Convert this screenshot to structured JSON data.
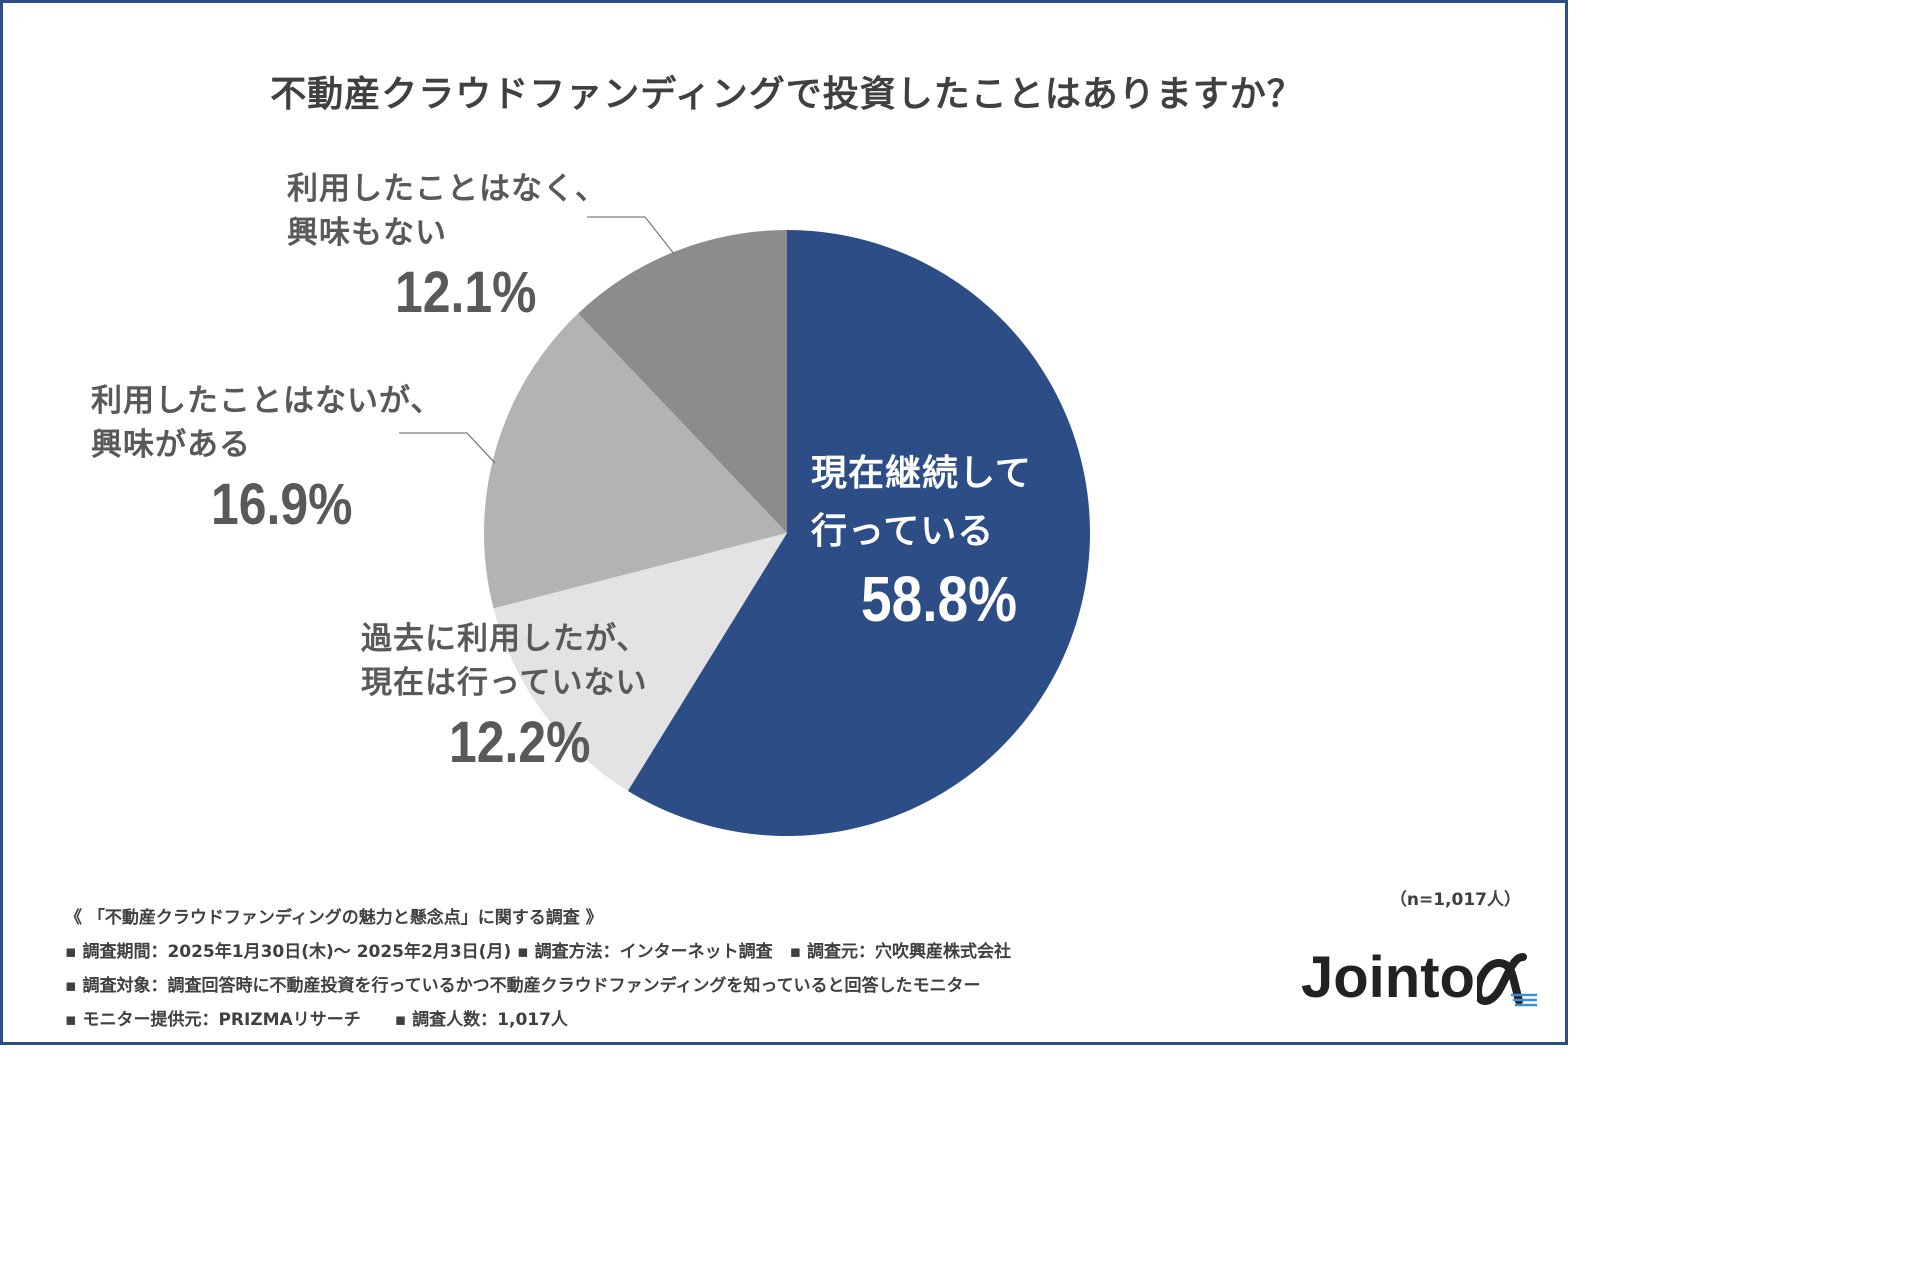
{
  "title": "不動産クラウドファンディングで投資したことはありますか？",
  "colors": {
    "continuing": "#2d4d86",
    "past": "#e3e3e3",
    "interested": "#b3b3b3",
    "not_interested": "#8c8c8c",
    "frame": "#2d4d86"
  },
  "chart_data": {
    "type": "pie",
    "title": "不動産クラウドファンディングで投資したことはありますか？",
    "start_angle": "12 o'clock, clockwise",
    "slices": [
      {
        "label_line1": "現在継続して",
        "label_line2": "行っている",
        "value": 58.8,
        "value_label": "58.8%",
        "color": "#2d4d86"
      },
      {
        "label_line1": "過去に利用したが、",
        "label_line2": "現在は行っていない",
        "value": 12.2,
        "value_label": "12.2%",
        "color": "#e3e3e3"
      },
      {
        "label_line1": "利用したことはないが、",
        "label_line2": "興味がある",
        "value": 16.9,
        "value_label": "16.9%",
        "color": "#b3b3b3"
      },
      {
        "label_line1": "利用したことはなく、",
        "label_line2": "興味もない",
        "value": 12.1,
        "value_label": "12.1%",
        "color": "#8c8c8c"
      }
    ]
  },
  "n_label": "（n=1,017人）",
  "footer": {
    "line1": "《 「不動産クラウドファンディングの魅力と懸念点」に関する調査 》",
    "line2": "▪ 調査期間：2025年1月30日(木)～ 2025年2月3日(月) ▪ 調査方法：インターネット調査　▪ 調査元：穴吹興産株式会社",
    "line3": "▪ 調査対象：調査回答時に不動産投資を行っているかつ不動産クラウドファンディングを知っていると回答したモニター",
    "line4": "▪ モニター提供元：PRIZMAリサーチ　　▪ 調査人数：1,017人"
  },
  "logo": {
    "text": "Jointo",
    "symbol": "α"
  }
}
